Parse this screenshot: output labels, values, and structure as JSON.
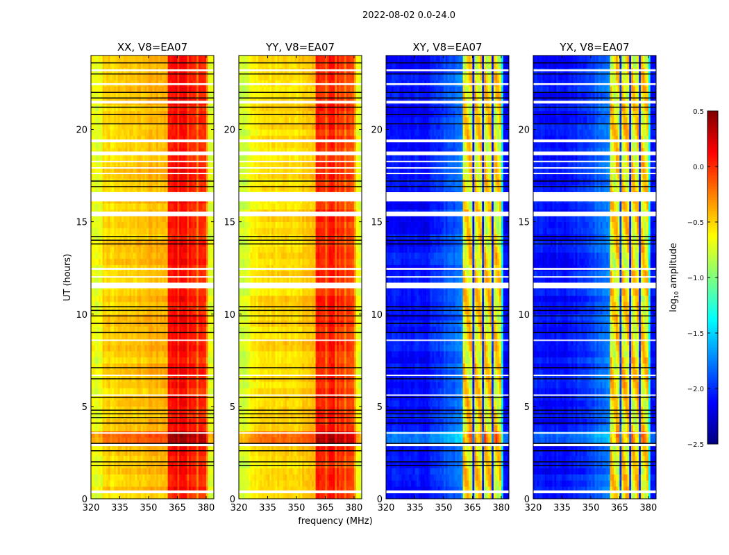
{
  "chart_data": {
    "type": "heatmap",
    "title": "2022-08-02 0.0-24.0",
    "xlabel": "frequency (MHz)",
    "ylabel": "UT (hours)",
    "xlim": [
      320,
      384
    ],
    "ylim": [
      0,
      24
    ],
    "xticks": [
      320,
      335,
      350,
      365,
      380
    ],
    "xtick_labels": [
      "320",
      "335",
      "350",
      "365",
      "380"
    ],
    "yticks": [
      0,
      5,
      10,
      15,
      20
    ],
    "ytick_labels": [
      "0",
      "5",
      "10",
      "15",
      "20"
    ],
    "colormap": "jet",
    "colorbar": {
      "label_prefix": "log",
      "label_sub": "10",
      "label_suffix": " amplitude",
      "range": [
        -2.5,
        0.5
      ],
      "ticks": [
        0.5,
        0.0,
        -0.5,
        -1.0,
        -1.5,
        -2.0,
        -2.5
      ],
      "tick_labels": [
        "0.5",
        "0.0",
        "−0.5",
        "−1.0",
        "−1.5",
        "−2.0",
        "−2.5"
      ]
    },
    "panels": [
      {
        "title": "XX, V8=EA07",
        "kind": "parallel",
        "base_level": -0.55,
        "band_level": 0.1
      },
      {
        "title": "YY, V8=EA07",
        "kind": "parallel",
        "base_level": -0.6,
        "band_level": 0.05
      },
      {
        "title": "XY, V8=EA07",
        "kind": "cross",
        "base_level": -2.1,
        "band_level": -0.6
      },
      {
        "title": "YX, V8=EA07",
        "kind": "cross",
        "base_level": -2.1,
        "band_level": -0.6
      }
    ],
    "bright_band_MHz": [
      360.5,
      380
    ],
    "band_gaps_MHz": [
      365.2,
      370.3,
      375.3,
      380.2
    ],
    "enhanced_interval_hours": [
      3.0,
      3.8
    ],
    "flagged_intervals_hours": [
      [
        23.15,
        23.25
      ],
      [
        22.4,
        22.5
      ],
      [
        21.4,
        21.55
      ],
      [
        19.3,
        19.45
      ],
      [
        18.6,
        18.8
      ],
      [
        18.25,
        18.3
      ],
      [
        17.9,
        17.95
      ],
      [
        17.6,
        17.65
      ],
      [
        16.1,
        16.6
      ],
      [
        15.3,
        15.55
      ],
      [
        12.4,
        12.5
      ],
      [
        12.0,
        12.05
      ],
      [
        11.4,
        11.7
      ],
      [
        8.55,
        8.62
      ],
      [
        6.68,
        6.72
      ],
      [
        5.6,
        5.65
      ],
      [
        3.55,
        3.6
      ],
      [
        2.85,
        2.98
      ],
      [
        0.3,
        0.45
      ]
    ],
    "boundary_lines_hours": [
      23.6,
      23.0,
      22.0,
      21.7,
      21.2,
      20.8,
      20.3,
      17.2,
      16.9,
      14.2,
      14.0,
      13.8,
      10.4,
      10.2,
      9.9,
      9.5,
      9.0,
      7.1,
      6.5,
      5.5,
      4.8,
      4.6,
      4.4,
      4.1,
      3.0,
      2.6,
      2.0,
      1.8
    ]
  }
}
